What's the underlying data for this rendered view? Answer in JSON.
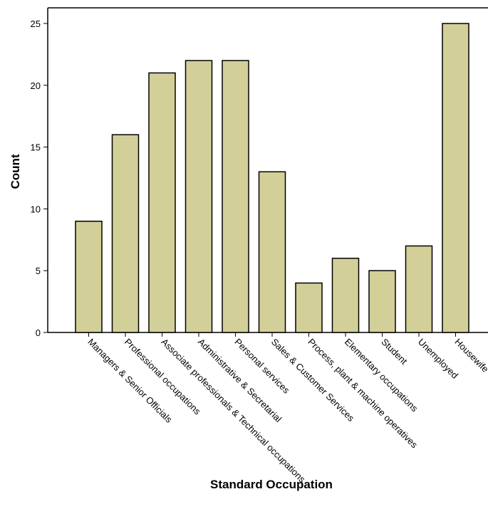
{
  "chart_data": {
    "type": "bar",
    "title": "",
    "xlabel": "Standard Occupation",
    "ylabel": "Count",
    "categories": [
      "Managers & Senior Officials",
      "Professional occupations",
      "Associate professionals & Technical occupations",
      "Administrative & Secretarial",
      "Personal services",
      "Sales & Customer Services",
      "Process, plant & machine operatives",
      "Elementary occupations",
      "Student",
      "Unemployed",
      "Housewife"
    ],
    "values": [
      9,
      16,
      21,
      22,
      22,
      13,
      4,
      6,
      5,
      7,
      25
    ],
    "ylim": [
      0,
      25
    ],
    "yticks": [
      0,
      5,
      10,
      15,
      20,
      25
    ],
    "grid": false,
    "bar_color": "#d3cf99",
    "bar_edge_color": "#000000"
  }
}
